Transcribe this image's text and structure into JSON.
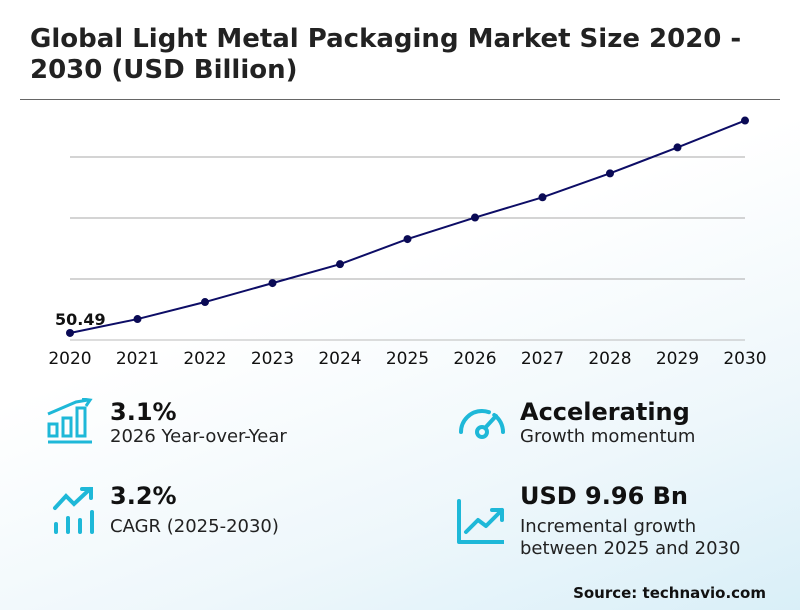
{
  "title": "Global Light Metal Packaging Market Size 2020 - 2030 (USD Billion)",
  "chart_data": {
    "type": "line",
    "title": "Global Light Metal Packaging Market Size 2020 - 2030 (USD Billion)",
    "x": [
      "2020",
      "2021",
      "2022",
      "2023",
      "2024",
      "2025",
      "2026",
      "2027",
      "2028",
      "2029",
      "2030"
    ],
    "series": [
      {
        "values": [
          50.49,
          51.66,
          53.09,
          54.68,
          56.27,
          58.38,
          60.19,
          61.89,
          63.9,
          66.08,
          68.34
        ]
      }
    ],
    "data_labels": [
      {
        "x": "2020",
        "text": "50.49"
      }
    ],
    "ylim": [
      49.9,
      70.4
    ],
    "grid": true,
    "line_color": "#0d0d66",
    "marker_color": "#0a0a55"
  },
  "stats": [
    {
      "value": "3.1%",
      "label": "2026 Year-over-Year",
      "icon": "bar-chart-growth-icon"
    },
    {
      "value": "Accelerating",
      "label": "Growth momentum",
      "icon": "speedometer-icon"
    },
    {
      "value": "3.2%",
      "label": "CAGR (2025-2030)",
      "icon": "trend-up-bars-icon"
    },
    {
      "value": "USD 9.96 Bn",
      "label": "Incremental growth",
      "label2": "between 2025 and 2030",
      "icon": "line-chart-up-icon"
    }
  ],
  "accent_color": "#1eb8d8",
  "source": "Source: technavio.com"
}
